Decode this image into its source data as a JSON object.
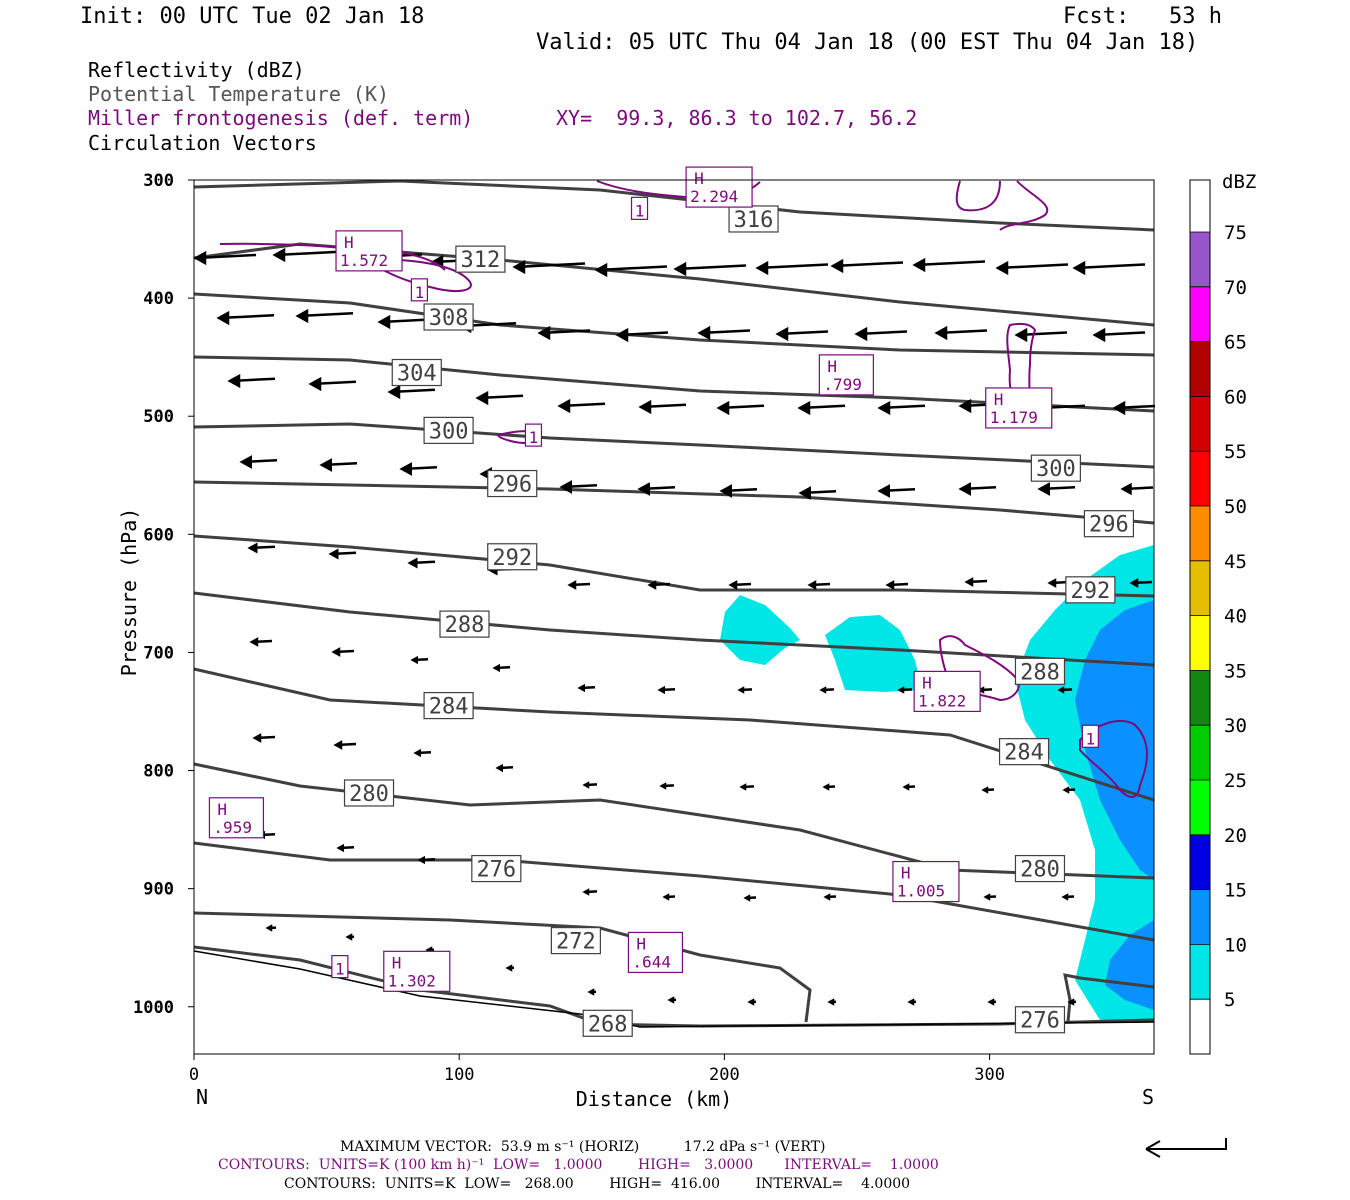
{
  "header": {
    "init": "Init: 00 UTC Tue 02 Jan 18",
    "fcst": "Fcst:   53 h",
    "valid": "Valid: 05 UTC Thu 04 Jan 18 (00 EST Thu 04 Jan 18)"
  },
  "legend": {
    "line1": "Reflectivity (dBZ)",
    "line2": "Potential Temperature (K)",
    "line3": "Miller frontogenesis (def. term)",
    "xy": "XY=  99.3, 86.3 to 102.7, 56.2",
    "line4": "Circulation Vectors"
  },
  "colors": {
    "theta": "#404040",
    "fronto": "#7d0a7d",
    "cyan": "#00e5e5",
    "blue": "#0a91ff"
  },
  "chart_data": {
    "type": "cross-section",
    "xlabel": "Distance (km)",
    "ylabel": "Pressure (hPa)",
    "xlim": [
      0,
      362
    ],
    "ylim": [
      300,
      1040
    ],
    "x_ticks": [
      0,
      100,
      200,
      300
    ],
    "y_ticks": [
      300,
      400,
      500,
      600,
      700,
      800,
      900,
      1000
    ],
    "x_end_labels": {
      "left": "N",
      "right": "S"
    },
    "colorbar": {
      "title": "dBZ",
      "levels": [
        5,
        10,
        15,
        20,
        25,
        30,
        35,
        40,
        45,
        50,
        55,
        60,
        65,
        70,
        75
      ],
      "colors": [
        "#ffffff",
        "#00e5e5",
        "#0a91ff",
        "#0000e0",
        "#00ff00",
        "#00cc00",
        "#118811",
        "#ffff00",
        "#e6be00",
        "#ff8c00",
        "#ff0000",
        "#d40000",
        "#b00000",
        "#ff00ff",
        "#9955cc",
        "#ffffff"
      ]
    },
    "theta_labels": [
      {
        "text": "316",
        "x": 211,
        "p": 333
      },
      {
        "text": "312",
        "x": 108,
        "p": 367
      },
      {
        "text": "308",
        "x": 96,
        "p": 416
      },
      {
        "text": "304",
        "x": 84,
        "p": 463
      },
      {
        "text": "300",
        "x": 96,
        "p": 512
      },
      {
        "text": "300",
        "x": 325,
        "p": 544
      },
      {
        "text": "296",
        "x": 120,
        "p": 557
      },
      {
        "text": "296",
        "x": 345,
        "p": 591
      },
      {
        "text": "292",
        "x": 120,
        "p": 619
      },
      {
        "text": "292",
        "x": 338,
        "p": 647
      },
      {
        "text": "288",
        "x": 102,
        "p": 676
      },
      {
        "text": "288",
        "x": 319,
        "p": 716
      },
      {
        "text": "284",
        "x": 96,
        "p": 745
      },
      {
        "text": "284",
        "x": 313,
        "p": 784
      },
      {
        "text": "280",
        "x": 66,
        "p": 819
      },
      {
        "text": "280",
        "x": 319,
        "p": 883
      },
      {
        "text": "276",
        "x": 114,
        "p": 883
      },
      {
        "text": "272",
        "x": 144,
        "p": 944
      },
      {
        "text": "268",
        "x": 156,
        "p": 1014
      },
      {
        "text": "276",
        "x": 319,
        "p": 1011
      }
    ],
    "fronto_labels": [
      {
        "h": "H",
        "v": "2.294",
        "x": 198,
        "p": 306
      },
      {
        "h": "H",
        "v": "1.572",
        "x": 66,
        "p": 360
      },
      {
        "h": "H",
        "v": ".799",
        "x": 246,
        "p": 465
      },
      {
        "h": "H",
        "v": "1.179",
        "x": 311,
        "p": 493
      },
      {
        "h": "H",
        "v": "1.822",
        "x": 284,
        "p": 733
      },
      {
        "h": "H",
        "v": ".959",
        "x": 16,
        "p": 840
      },
      {
        "h": "H",
        "v": "1.005",
        "x": 276,
        "p": 894
      },
      {
        "h": "H",
        "v": ".644",
        "x": 174,
        "p": 954
      },
      {
        "h": "H",
        "v": "1.302",
        "x": 84,
        "p": 970
      }
    ],
    "fronto_ones": [
      {
        "text": "1",
        "x": 168,
        "p": 324
      },
      {
        "text": "1",
        "x": 85,
        "p": 393
      },
      {
        "text": "1",
        "x": 128,
        "p": 516
      },
      {
        "text": "1",
        "x": 338,
        "p": 771
      },
      {
        "text": "1",
        "x": 55,
        "p": 966
      }
    ]
  },
  "footer": {
    "line1": "MAXIMUM VECTOR:  53.9 m s⁻¹ (HORIZ)          17.2 dPa s⁻¹ (VERT)",
    "line2": "CONTOURS:  UNITS=K (100 km h)⁻¹  LOW=   1.0000        HIGH=   3.0000       INTERVAL=    1.0000",
    "line3": "CONTOURS:  UNITS=K  LOW=   268.00        HIGH=  416.00        INTERVAL=    4.0000"
  }
}
